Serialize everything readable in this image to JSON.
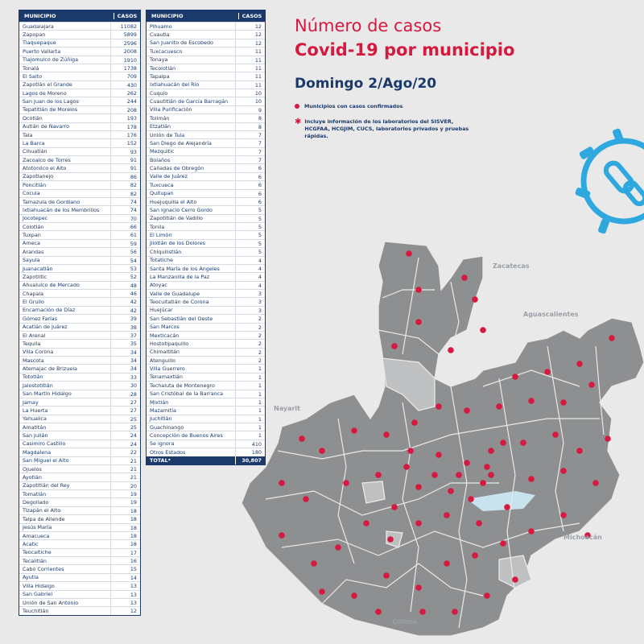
{
  "table_header": {
    "municipio": "MUNICIPIO",
    "casos": "CASOS"
  },
  "table1": [
    [
      "Guadalajara",
      "11082"
    ],
    [
      "Zapopan",
      "5899"
    ],
    [
      "Tlaquepaque",
      "2596"
    ],
    [
      "Puerto Vallarta",
      "2008"
    ],
    [
      "Tlajomulco de Zúñiga",
      "1910"
    ],
    [
      "Tonalá",
      "1738"
    ],
    [
      "El Salto",
      "709"
    ],
    [
      "Zapotlán el Grande",
      "430"
    ],
    [
      "Lagos de Moreno",
      "262"
    ],
    [
      "San Juan de los Lagos",
      "244"
    ],
    [
      "Tepatitlán de Morelos",
      "208"
    ],
    [
      "Ocotlán",
      "193"
    ],
    [
      "Autlán de Navarro",
      "178"
    ],
    [
      "Tala",
      "176"
    ],
    [
      "La Barca",
      "152"
    ],
    [
      "Cihuatlán",
      "93"
    ],
    [
      "Zacoalco de Torres",
      "91"
    ],
    [
      "Atotonilco el Alto",
      "91"
    ],
    [
      "Zapotlanejo",
      "86"
    ],
    [
      "Poncitlán",
      "82"
    ],
    [
      "Cocula",
      "82"
    ],
    [
      "Tamazula de Gordiano",
      "74"
    ],
    [
      "Ixtlahuacán de los Membrillos",
      "74"
    ],
    [
      "Jocotepec",
      "70"
    ],
    [
      "Colotlán",
      "66"
    ],
    [
      "Tuxpan",
      "61"
    ],
    [
      "Ameca",
      "59"
    ],
    [
      "Arandas",
      "56"
    ],
    [
      "Sayula",
      "54"
    ],
    [
      "Juanacatlán",
      "53"
    ],
    [
      "Zapotiltic",
      "52"
    ],
    [
      "Ahualulco de Mercado",
      "48"
    ],
    [
      "Chapala",
      "46"
    ],
    [
      "El Grullo",
      "42"
    ],
    [
      "Encarnación de Díaz",
      "42"
    ],
    [
      "Gómez Farías",
      "39"
    ],
    [
      "Acatlán de Juárez",
      "38"
    ],
    [
      "El Arenal",
      "37"
    ],
    [
      "Tequila",
      "35"
    ],
    [
      "Villa Corona",
      "34"
    ],
    [
      "Mascota",
      "34"
    ],
    [
      "Atemajac de Brizuela",
      "34"
    ],
    [
      "Tototlán",
      "33"
    ],
    [
      "Jalostotitlán",
      "30"
    ],
    [
      "San Martín Hidalgo",
      "28"
    ],
    [
      "Jamay",
      "27"
    ],
    [
      "La Huerta",
      "27"
    ],
    [
      "Yahualica",
      "25"
    ],
    [
      "Amatitán",
      "25"
    ],
    [
      "San Julián",
      "24"
    ],
    [
      "Casimiro Castillo",
      "24"
    ],
    [
      "Magdalena",
      "22"
    ],
    [
      "San Miguel el Alto",
      "21"
    ],
    [
      "Ojuelos",
      "21"
    ],
    [
      "Ayotlán",
      "21"
    ],
    [
      "Zapotitlán del Rey",
      "20"
    ],
    [
      "Tomatlán",
      "19"
    ],
    [
      "Degollado",
      "19"
    ],
    [
      "Tizapán el Alto",
      "18"
    ],
    [
      "Talpa de Allende",
      "18"
    ],
    [
      "Jesús María",
      "18"
    ],
    [
      "Amacueca",
      "18"
    ],
    [
      "Acatic",
      "18"
    ],
    [
      "Teocaltiche",
      "17"
    ],
    [
      "Tecalitlán",
      "16"
    ],
    [
      "Cabo Corrientes",
      "15"
    ],
    [
      "Ayutla",
      "14"
    ],
    [
      "Villa Hidalgo",
      "13"
    ],
    [
      "San Gabriel",
      "13"
    ],
    [
      "Unión de San Antonio",
      "13"
    ],
    [
      "Teuchitlán",
      "12"
    ]
  ],
  "table2": [
    [
      "Pihuamo",
      "12"
    ],
    [
      "Cuautla",
      "12"
    ],
    [
      "San Juanito de Escobedo",
      "12"
    ],
    [
      "Tuxcacuesco",
      "11"
    ],
    [
      "Tonaya",
      "11"
    ],
    [
      "Tecolotlán",
      "11"
    ],
    [
      "Tapalpa",
      "11"
    ],
    [
      "Ixtlahuacán del Río",
      "11"
    ],
    [
      "Cuquío",
      "10"
    ],
    [
      "Cuautitlán de García Barragán",
      "10"
    ],
    [
      "Villa Purificación",
      "9"
    ],
    [
      "Tolimán",
      "8"
    ],
    [
      "Etzatlán",
      "8"
    ],
    [
      "Unión de Tula",
      "7"
    ],
    [
      "San Diego de Alejandría",
      "7"
    ],
    [
      "Mezquitic",
      "7"
    ],
    [
      "Bolaños",
      "7"
    ],
    [
      "Cañadas de Obregón",
      "6"
    ],
    [
      "Valle de Juárez",
      "6"
    ],
    [
      "Tuxcueca",
      "6"
    ],
    [
      "Quitupan",
      "6"
    ],
    [
      "Huejuquilla el Alto",
      "6"
    ],
    [
      "San Ignacio Cerro Gordo",
      "5"
    ],
    [
      "Zapotitlán de Vadillo",
      "5"
    ],
    [
      "Tonila",
      "5"
    ],
    [
      "El Limón",
      "5"
    ],
    [
      "Jilotlán de los Dolores",
      "5"
    ],
    [
      "Chiquilistlán",
      "5"
    ],
    [
      "Totatiche",
      "4"
    ],
    [
      "Santa María de los Ángeles",
      "4"
    ],
    [
      "La Manzanilla de la Paz",
      "4"
    ],
    [
      "Atoyac",
      "4"
    ],
    [
      "Valle de Guadalupe",
      "3"
    ],
    [
      "Teocuitatlán de Corona",
      "3"
    ],
    [
      "Huejúcar",
      "3"
    ],
    [
      "San Sebastián del Oeste",
      "2"
    ],
    [
      "San Marcos",
      "2"
    ],
    [
      "Mexticacán",
      "2"
    ],
    [
      "Hostotipaquillo",
      "2"
    ],
    [
      "Chimaltitán",
      "2"
    ],
    [
      "Atenguillo",
      "2"
    ],
    [
      "Villa Guerrero",
      "1"
    ],
    [
      "Tenamaxtlán",
      "1"
    ],
    [
      "Techaluta de Montenegro",
      "1"
    ],
    [
      "San Cristóbal de la Barranca",
      "1"
    ],
    [
      "Mixtlán",
      "1"
    ],
    [
      "Mazamitla",
      "1"
    ],
    [
      "Juchitlán",
      "1"
    ],
    [
      "Guachinango",
      "1"
    ],
    [
      "Concepción de Buenos Aires",
      "1"
    ],
    [
      "Se ignora",
      "410"
    ],
    [
      "Otros Estados",
      "180"
    ]
  ],
  "total": {
    "label": "TOTAL*",
    "value": "30,807"
  },
  "title": {
    "line1": "Número de casos",
    "line2": "Covid-19 por municipio"
  },
  "date": "Domingo 2/Ago/20",
  "legend": {
    "dot": "Municipios con casos confirmados",
    "note": "Incluye información de los laboratorios del SISVER, HCGFAA, HCGJIM, CUCS, laboratorios privados y pruebas rápidas."
  },
  "regions": {
    "zacatecas": "Zacatecas",
    "aguascalientes": "Aguascalientes",
    "nayarit": "Nayarit",
    "michoacan": "Michoacán",
    "colima": "Colima"
  },
  "colors": {
    "navy": "#1b3a6b",
    "red": "#d6193f",
    "map": "#8e8f91",
    "icon": "#2fa8e0"
  }
}
